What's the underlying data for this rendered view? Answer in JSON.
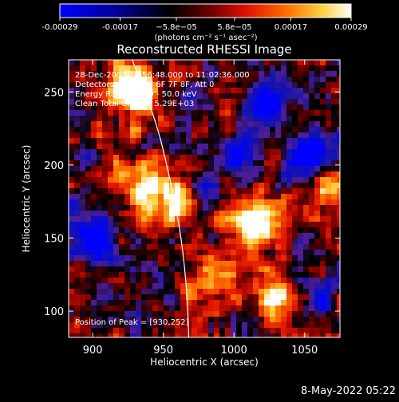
{
  "chart_data": {
    "type": "heatmap",
    "title": "Reconstructed RHESSI Image",
    "xlabel": "Heliocentric X (arcsec)",
    "ylabel": "Heliocentric Y (arcsec)",
    "xlim": [
      883,
      1075
    ],
    "ylim": [
      82,
      272
    ],
    "x_ticks": [
      900,
      950,
      1000,
      1050
    ],
    "y_ticks": [
      100,
      150,
      200,
      250
    ],
    "x_tick_labels": [
      "900",
      "950",
      "1000",
      "1050"
    ],
    "y_tick_labels": [
      "100",
      "150",
      "200",
      "250"
    ],
    "colorbar": {
      "range": [
        -0.00029,
        0.00029
      ],
      "tick_values": [
        -0.00029,
        -0.00017,
        -5.8e-05,
        5.8e-05,
        0.00017,
        0.00029
      ],
      "tick_labels": [
        "-0.00029",
        "-0.00017",
        "−5.8e−05",
        "5.8e−05",
        "0.00017",
        "0.00029"
      ],
      "units_label": "(photons cm⁻² s⁻¹ asec⁻²)",
      "colormap": [
        "#0000ff",
        "#000088",
        "#000000",
        "#880000",
        "#ff2000",
        "#ff9000",
        "#ffff80",
        "#ffffff"
      ]
    },
    "annotations": {
      "time_range": "28-Dec-2003 10:56:48.000 to 11:02:36.000",
      "detectors": "Detectors: 3F 4F 5F 6F 7F 8F, Att 0",
      "energy_range": "Energy Range: 25.0 - 50.0 keV",
      "method": "Clean     Total Counts: 5.29E+03",
      "peak": "Position of Peak = [930,252]"
    },
    "peak_position": [
      930,
      252
    ],
    "limb_arc": {
      "description_free": true,
      "points": [
        [
          928,
          272
        ],
        [
          945,
          230
        ],
        [
          955,
          190
        ],
        [
          963,
          150
        ],
        [
          967,
          110
        ],
        [
          968,
          82
        ]
      ]
    },
    "grid": false
  },
  "footer": {
    "date_stamp": "8-May-2022 05:22"
  }
}
